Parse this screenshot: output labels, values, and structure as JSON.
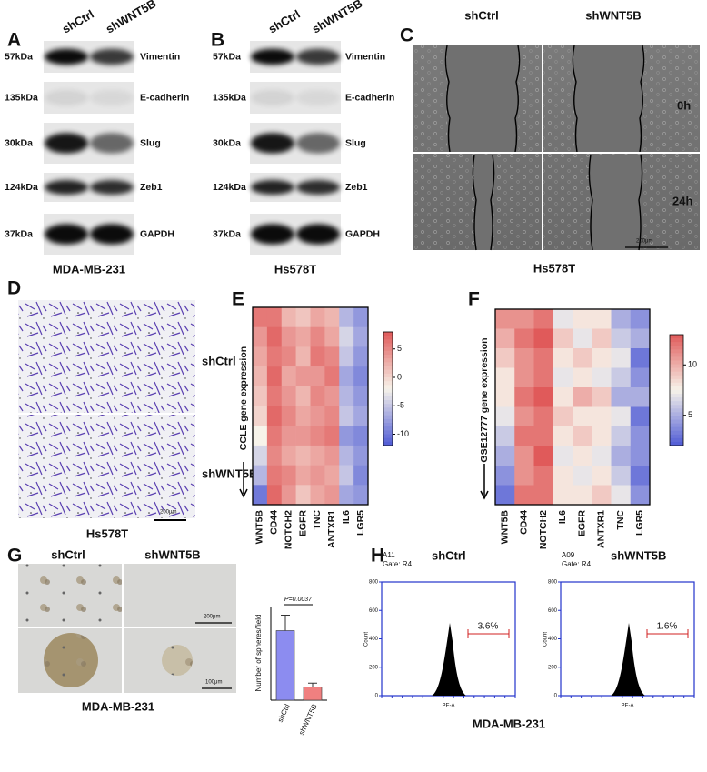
{
  "panels": {
    "A": {
      "label": "A",
      "columns": [
        "shCtrl",
        "shWNT5B"
      ],
      "rows": [
        {
          "kda": "57kDa",
          "protein": "Vimentin"
        },
        {
          "kda": "135kDa",
          "protein": "E-cadherin"
        },
        {
          "kda": "30kDa",
          "protein": "Slug"
        },
        {
          "kda": "124kDa",
          "protein": "Zeb1"
        },
        {
          "kda": "37kDa",
          "protein": "GAPDH"
        }
      ],
      "cell_line": "MDA-MB-231"
    },
    "B": {
      "label": "B",
      "columns": [
        "shCtrl",
        "shWNT5B"
      ],
      "rows": [
        {
          "kda": "57kDa",
          "protein": "Vimentin"
        },
        {
          "kda": "135kDa",
          "protein": "E-cadherin"
        },
        {
          "kda": "30kDa",
          "protein": "Slug"
        },
        {
          "kda": "124kDa",
          "protein": "Zeb1"
        },
        {
          "kda": "37kDa",
          "protein": "GAPDH"
        }
      ],
      "cell_line": "Hs578T"
    },
    "C": {
      "label": "C",
      "columns": [
        "shCtrl",
        "shWNT5B"
      ],
      "times": [
        "0h",
        "24h"
      ],
      "scale": "200μm",
      "cell_line": "Hs578T"
    },
    "D": {
      "label": "D",
      "conditions": [
        "shCtrl",
        "shWNT5B"
      ],
      "scale": "200μm",
      "cell_line": "Hs578T"
    },
    "G": {
      "label": "G",
      "columns": [
        "shCtrl",
        "shWNT5B"
      ],
      "scales": [
        "200μm",
        "100μm"
      ],
      "cell_line": "MDA-MB-231"
    },
    "H": {
      "label": "H",
      "plots": [
        {
          "sample": "A11",
          "gate": "Gate: R4",
          "condition": "shCtrl",
          "percent": "3.6%"
        },
        {
          "sample": "A09",
          "gate": "Gate: R4",
          "condition": "shWNT5B",
          "percent": "1.6%"
        }
      ],
      "y_label": "Count",
      "x_label": "PE-A",
      "ylim": [
        0,
        800
      ],
      "yticks": [
        0,
        200,
        400,
        600,
        800
      ],
      "cell_line": "MDA-MB-231"
    }
  },
  "chart_data": [
    {
      "type": "heatmap",
      "label": "E",
      "y_label": "CCLE gene expression",
      "colormap": [
        "#4f5bd5",
        "#f7f3ea",
        "#e05a5a"
      ],
      "clim": [
        -12,
        8
      ],
      "cticks": [
        5,
        0,
        -5,
        -10
      ],
      "series": [
        {
          "name": "WNT5B",
          "values": [
            6,
            4,
            3,
            2,
            1,
            0,
            -2,
            -4,
            -6,
            -10
          ]
        },
        {
          "name": "CD44",
          "values": [
            6,
            7,
            6,
            7,
            6,
            7,
            6,
            5,
            6,
            7
          ]
        },
        {
          "name": "NOTCH2",
          "values": [
            2,
            4,
            5,
            3,
            4,
            5,
            4,
            3,
            5,
            4
          ]
        },
        {
          "name": "EGFR",
          "values": [
            1,
            3,
            2,
            4,
            2,
            3,
            4,
            2,
            3,
            1
          ]
        },
        {
          "name": "TNC",
          "values": [
            3,
            5,
            6,
            4,
            5,
            4,
            5,
            3,
            4,
            3
          ]
        },
        {
          "name": "ANTXR1",
          "values": [
            2,
            3,
            5,
            6,
            4,
            5,
            6,
            4,
            3,
            4
          ]
        },
        {
          "name": "IL6",
          "values": [
            -6,
            -4,
            -5,
            -7,
            -6,
            -5,
            -8,
            -6,
            -5,
            -7
          ]
        },
        {
          "name": "LGR5",
          "values": [
            -8,
            -7,
            -8,
            -9,
            -8,
            -7,
            -9,
            -8,
            -9,
            -8
          ]
        }
      ]
    },
    {
      "type": "heatmap",
      "label": "F",
      "y_label": "GSE12777 gene expression",
      "colormap": [
        "#4f5bd5",
        "#f7f3ea",
        "#e05a5a"
      ],
      "clim": [
        2,
        13
      ],
      "cticks": [
        10,
        5
      ],
      "series": [
        {
          "name": "WNT5B",
          "values": [
            11,
            10,
            9,
            8,
            8,
            7,
            6,
            5,
            4,
            3
          ]
        },
        {
          "name": "CD44",
          "values": [
            11,
            12,
            11,
            11,
            12,
            11,
            12,
            11,
            11,
            12
          ]
        },
        {
          "name": "NOTCH2",
          "values": [
            12,
            13,
            12,
            12,
            13,
            12,
            12,
            13,
            12,
            12
          ]
        },
        {
          "name": "IL6",
          "values": [
            7,
            9,
            8,
            7,
            8,
            9,
            8,
            7,
            8,
            8
          ]
        },
        {
          "name": "EGFR",
          "values": [
            8,
            7,
            9,
            8,
            10,
            8,
            9,
            8,
            7,
            8
          ]
        },
        {
          "name": "ANTXR1",
          "values": [
            8,
            9,
            8,
            7,
            9,
            8,
            8,
            7,
            8,
            9
          ]
        },
        {
          "name": "TNC",
          "values": [
            5,
            6,
            7,
            6,
            5,
            7,
            6,
            5,
            6,
            7
          ]
        },
        {
          "name": "LGR5",
          "values": [
            4,
            5,
            3,
            4,
            5,
            3,
            4,
            4,
            3,
            4
          ]
        }
      ]
    },
    {
      "type": "bar",
      "y_label": "Number of spheres/field",
      "categories": [
        "shCtrl",
        "shWNT5B"
      ],
      "values": [
        9,
        1.7
      ],
      "errors": [
        2,
        0.5
      ],
      "colors": [
        "#8c8cf0",
        "#f08080"
      ],
      "ylim": [
        0,
        12
      ],
      "annotation": "P=0.0037"
    }
  ]
}
